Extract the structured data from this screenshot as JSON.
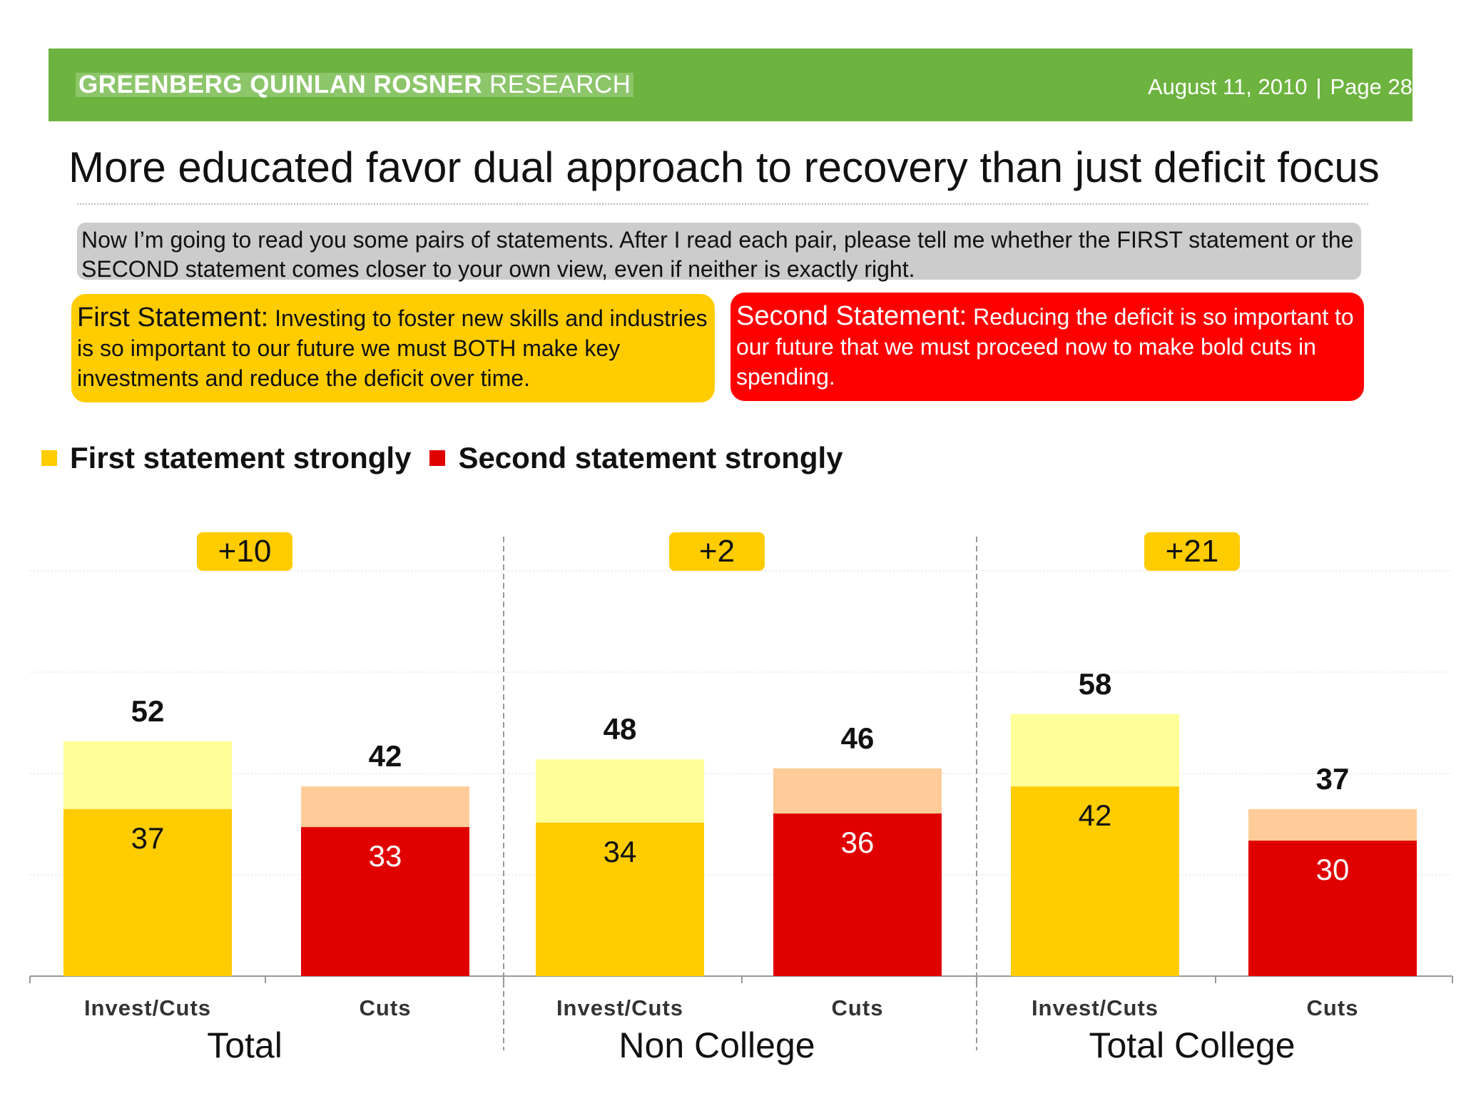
{
  "header": {
    "brand_bold": "GREENBERG QUINLAN ROSNER",
    "brand_light": "RESEARCH",
    "date": "August 11, 2010",
    "separator": "|",
    "page": "Page 28"
  },
  "title": "More educated favor dual approach to recovery than just deficit focus",
  "question": "Now I’m going to read you some pairs of statements. After I read each pair, please tell me whether the FIRST statement or the SECOND statement comes closer to your own view, even if neither is exactly right.",
  "statements": {
    "first": {
      "label": "First Statement:",
      "text": "Investing to foster new skills and industries is so important to our future we must BOTH make key investments and reduce the deficit over time."
    },
    "second": {
      "label": "Second Statement:",
      "text": "Reducing the deficit is so important to our future that we must proceed now to make bold cuts in spending."
    }
  },
  "colors": {
    "first_strong": "#ffcc00",
    "first_total": "#ffff99",
    "second_strong": "#e00000",
    "second_total": "#ffcc99",
    "header_green": "#6db33f",
    "margin_box": "#ffcc00"
  },
  "chart_data": {
    "type": "bar",
    "legend": [
      "First statement strongly",
      "Second statement strongly"
    ],
    "ylim": [
      0,
      100
    ],
    "groups": [
      {
        "name": "Total",
        "margin": "+10",
        "bars": [
          {
            "label": "Invest/Cuts",
            "statement": "first",
            "total": 52,
            "strongly": 37
          },
          {
            "label": "Cuts",
            "statement": "second",
            "total": 42,
            "strongly": 33
          }
        ]
      },
      {
        "name": "Non College",
        "margin": "+2",
        "bars": [
          {
            "label": "Invest/Cuts",
            "statement": "first",
            "total": 48,
            "strongly": 34
          },
          {
            "label": "Cuts",
            "statement": "second",
            "total": 46,
            "strongly": 36
          }
        ]
      },
      {
        "name": "Total College",
        "margin": "+21",
        "bars": [
          {
            "label": "Invest/Cuts",
            "statement": "first",
            "total": 58,
            "strongly": 42
          },
          {
            "label": "Cuts",
            "statement": "second",
            "total": 37,
            "strongly": 30
          }
        ]
      }
    ]
  }
}
